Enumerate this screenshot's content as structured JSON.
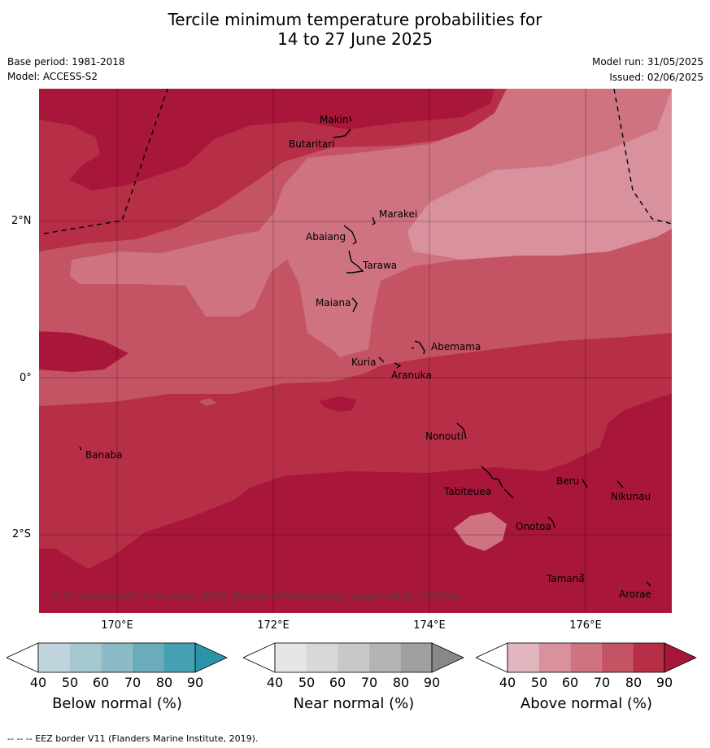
{
  "title_line1": "Tercile minimum temperature probabilities for",
  "title_line2": "14 to 27 June 2025",
  "base_period": "Base period: 1981-2018",
  "model": "Model: ACCESS-S2",
  "model_run": "Model run: 31/05/2025",
  "issued": "Issued: 02/06/2025",
  "lat_labels": [
    "2°N",
    "0°",
    "2°S"
  ],
  "lon_labels": [
    "170°E",
    "172°E",
    "174°E",
    "176°E"
  ],
  "islands": [
    "Makin",
    "Butaritari",
    "Marakei",
    "Abaiang",
    "Tarawa",
    "Maiana",
    "Abemama",
    "Kuria",
    "Aranuka",
    "Nonouti",
    "Banaba",
    "Tabiteuea",
    "Beru",
    "Nikunau",
    "Onotoa",
    "Tamana",
    "Arorae"
  ],
  "copyright": "© Commonwealth of Australia 2025, Bureau of Meteorology, supported by COSPPac",
  "colorbars": [
    {
      "title": "Below normal (%)",
      "ticks": [
        "40",
        "50",
        "60",
        "70",
        "80",
        "90"
      ],
      "colors": [
        "#ffffff",
        "#bfd4dc",
        "#a6c8d1",
        "#8cbac6",
        "#6aacbb",
        "#45a0b2",
        "#2b93a8"
      ]
    },
    {
      "title": "Near normal (%)",
      "ticks": [
        "40",
        "50",
        "60",
        "70",
        "80",
        "90"
      ],
      "colors": [
        "#ffffff",
        "#e6e6e6",
        "#d8d8d8",
        "#c8c8c8",
        "#b4b4b4",
        "#a0a0a0",
        "#888888"
      ]
    },
    {
      "title": "Above normal (%)",
      "ticks": [
        "40",
        "50",
        "60",
        "70",
        "80",
        "90"
      ],
      "colors": [
        "#ffffff",
        "#e2b6bf",
        "#d9919d",
        "#ce737f",
        "#c45464",
        "#b72e47",
        "#a8163a"
      ]
    }
  ],
  "footer": "--  --  -- EEZ border V11 (Flanders Marine Institute, 2019)."
}
